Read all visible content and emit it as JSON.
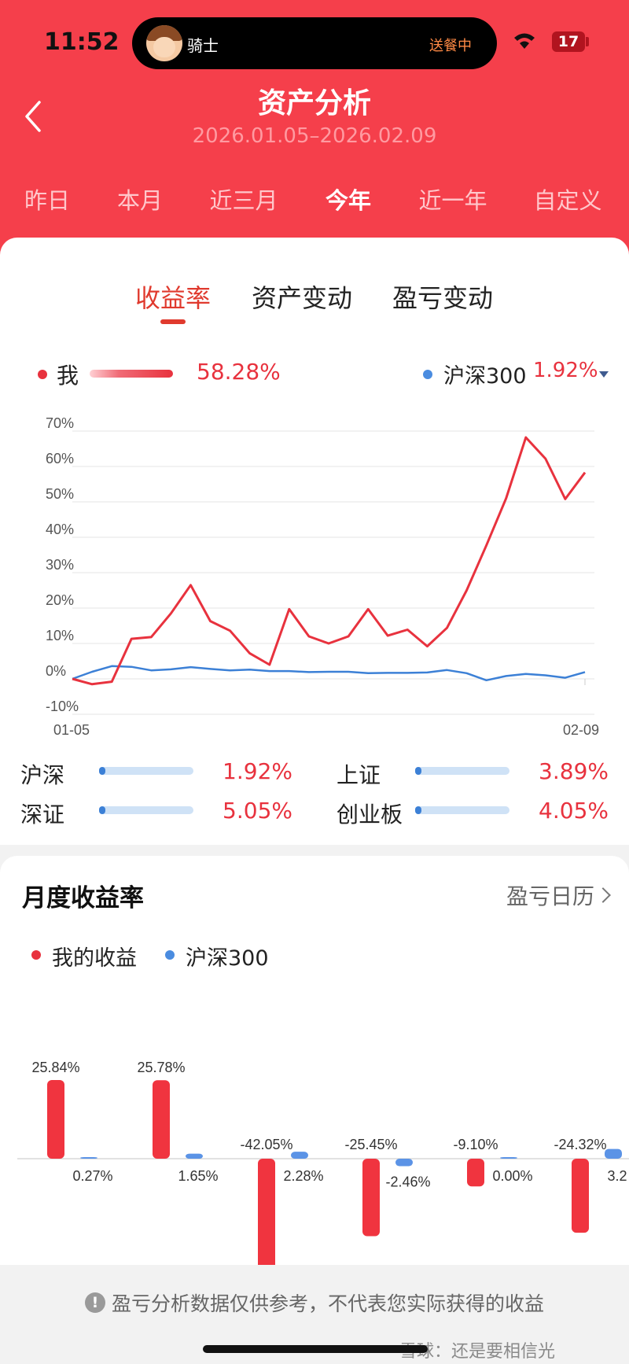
{
  "status_bar": {
    "time": "11:52",
    "activity_name": "骑士",
    "activity_status": "送餐中",
    "battery": "17"
  },
  "header": {
    "title": "资产分析",
    "date_range": "2026.01.05–2026.02.09",
    "back_icon": "chevron-left-icon"
  },
  "period_tabs": [
    {
      "label": "昨日",
      "active": false
    },
    {
      "label": "本月",
      "active": false
    },
    {
      "label": "近三月",
      "active": false
    },
    {
      "label": "今年",
      "active": true
    },
    {
      "label": "近一年",
      "active": false
    },
    {
      "label": "自定义",
      "active": false
    }
  ],
  "sub_tabs": [
    {
      "label": "收益率",
      "active": true
    },
    {
      "label": "资产变动",
      "active": false
    },
    {
      "label": "盈亏变动",
      "active": false
    }
  ],
  "legend": {
    "me_label": "我",
    "me_value": "58.28%",
    "index_label": "沪深300",
    "index_value": "1.92%"
  },
  "colors": {
    "header_bg": "#f53f4b",
    "me_line": "#e8323e",
    "index_line": "#3c80d6"
  },
  "chart_data": [
    {
      "type": "line",
      "x_start": "01-05",
      "x_end": "02-09",
      "y_ticks": [
        "70%",
        "60%",
        "50%",
        "40%",
        "30%",
        "20%",
        "10%",
        "0%",
        "-10%"
      ],
      "ylim": [
        -10,
        70
      ],
      "grid": true,
      "series": [
        {
          "name": "我",
          "color": "#e8323e",
          "values": [
            0.0,
            -1.5,
            -0.8,
            11.3,
            11.8,
            18.5,
            26.5,
            16.3,
            13.6,
            7.2,
            4.0,
            19.7,
            12.0,
            10.0,
            12.0,
            19.7,
            12.2,
            13.9,
            9.2,
            14.4,
            25.0,
            37.7,
            51.0,
            68.2,
            62.2,
            50.8,
            58.28
          ]
        },
        {
          "name": "沪深300",
          "color": "#3c80d6",
          "values": [
            0.0,
            2.0,
            3.6,
            3.4,
            2.4,
            2.7,
            3.3,
            2.8,
            2.4,
            2.6,
            2.2,
            2.2,
            1.9,
            2.0,
            2.0,
            1.6,
            1.7,
            1.7,
            1.8,
            2.5,
            1.6,
            -0.4,
            0.8,
            1.4,
            1.0,
            0.3,
            1.92
          ]
        }
      ]
    },
    {
      "type": "bar",
      "title": "月度收益率",
      "series": [
        {
          "name": "我的收益",
          "color": "#f0343f",
          "values": [
            25.84,
            25.78,
            -42.05,
            -25.45,
            -9.1,
            -24.32
          ],
          "labels": [
            "25.84%",
            "25.78%",
            "-42.05%",
            "-25.45%",
            "-9.10%",
            "-24.32%"
          ]
        },
        {
          "name": "沪深300",
          "color": "#5b93e6",
          "values": [
            0.27,
            1.65,
            2.28,
            -2.46,
            0.0,
            3.2
          ],
          "labels": [
            "0.27%",
            "1.65%",
            "2.28%",
            "-2.46%",
            "0.00%",
            "3.2"
          ]
        }
      ]
    }
  ],
  "comparison": [
    {
      "label": "沪深",
      "value": "1.92%",
      "fill": 0.04
    },
    {
      "label": "上证",
      "value": "3.89%",
      "fill": 0.04
    },
    {
      "label": "深证",
      "value": "5.05%",
      "fill": 0.05
    },
    {
      "label": "创业板",
      "value": "4.05%",
      "fill": 0.04
    }
  ],
  "monthly": {
    "title": "月度收益率",
    "calendar_link": "盈亏日历",
    "legend_me": "我的收益",
    "legend_index": "沪深300"
  },
  "footer": {
    "disclaimer": "盈亏分析数据仅供参考，不代表您实际获得的收益",
    "watermark": "雪球：还是要相信光"
  }
}
